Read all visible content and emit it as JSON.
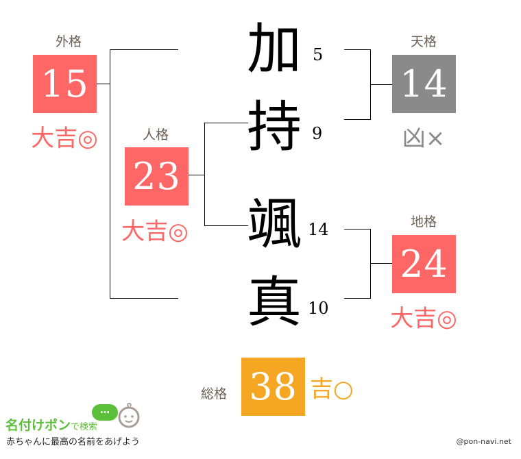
{
  "colors": {
    "good": "#ff6666",
    "bad": "#8a8a8a",
    "total": "#f5a623",
    "label": "#6b5e52"
  },
  "name": {
    "chars": [
      "加",
      "持",
      "颯",
      "真"
    ],
    "strokes": [
      "5",
      "9",
      "14",
      "10"
    ]
  },
  "gaikaku": {
    "label": "外格",
    "value": "15",
    "fortune": "大吉◎"
  },
  "jinkaku": {
    "label": "人格",
    "value": "23",
    "fortune": "大吉◎"
  },
  "tenkaku": {
    "label": "天格",
    "value": "14",
    "fortune": "凶×"
  },
  "chikaku": {
    "label": "地格",
    "value": "24",
    "fortune": "大吉◎"
  },
  "soukaku": {
    "label": "総格",
    "value": "38",
    "fortune": "吉○"
  },
  "footer": {
    "logo_title": "名付けポン",
    "logo_sub": "で検索",
    "tagline": "赤ちゃんに最高の名前をあげよう",
    "credit": "@pon-navi.net",
    "bubble": "…"
  }
}
